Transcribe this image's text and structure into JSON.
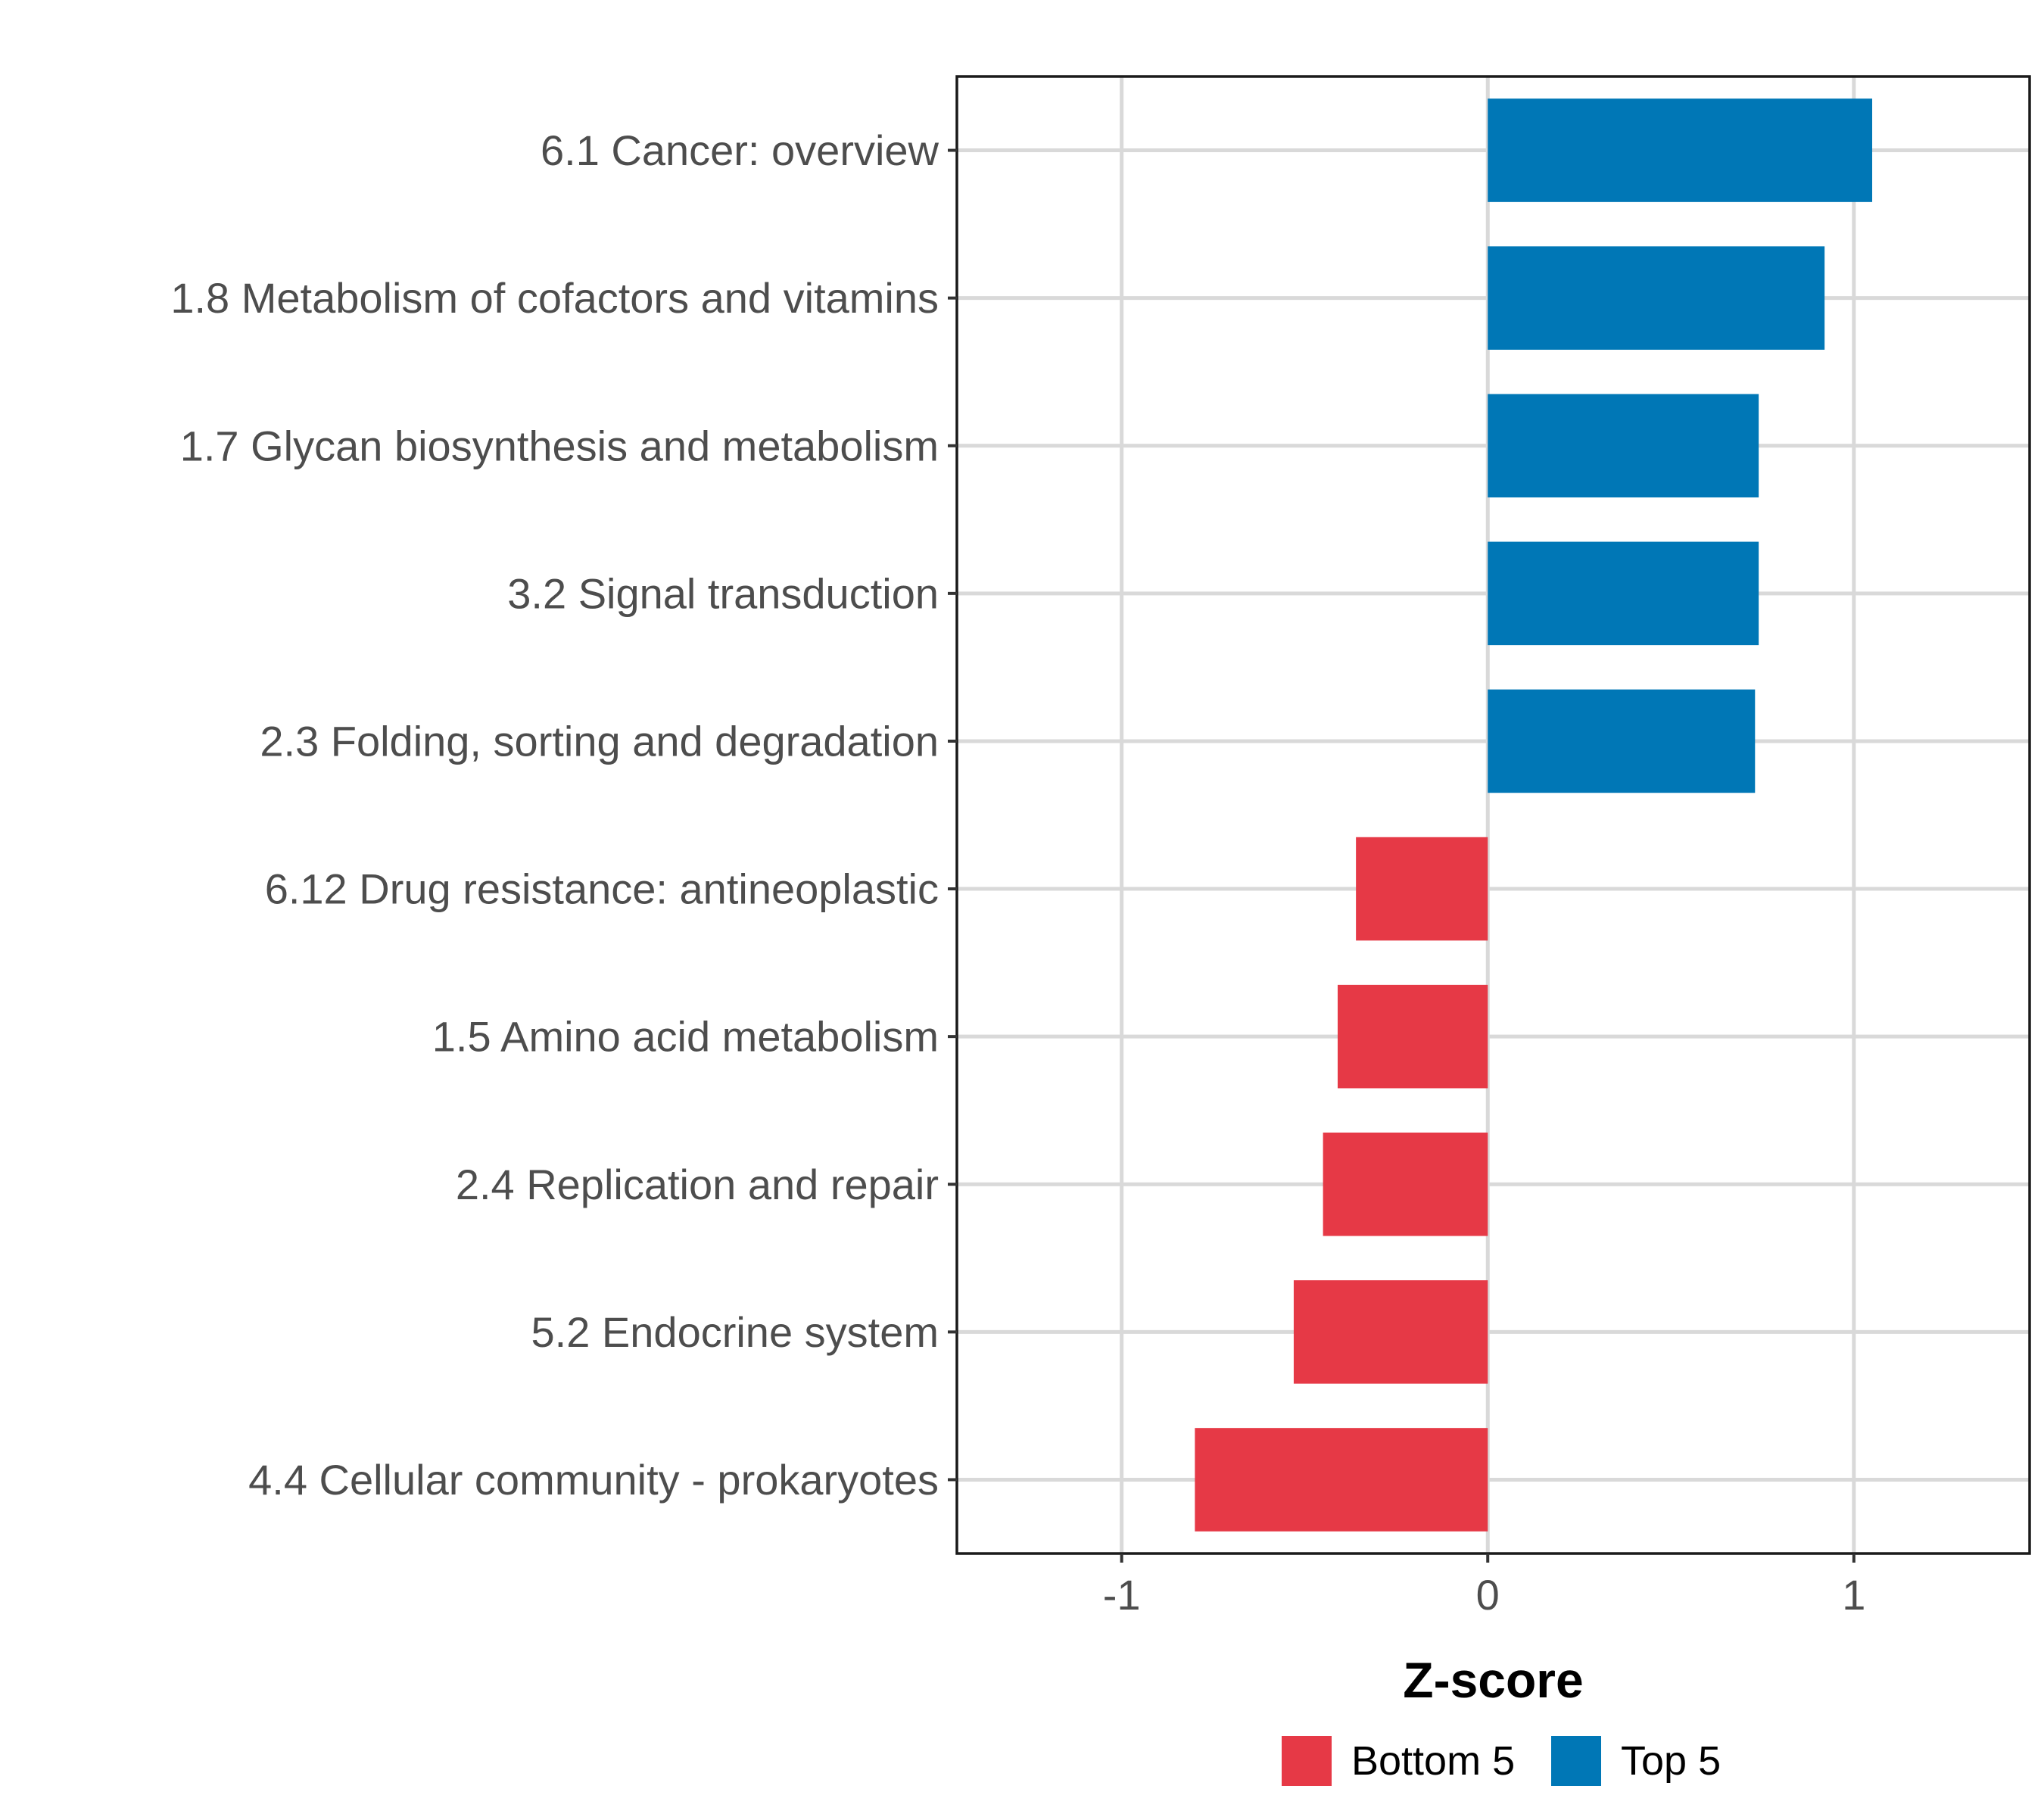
{
  "chart_data": {
    "type": "bar",
    "orientation": "horizontal",
    "title": "",
    "xlabel": "Z-score",
    "ylabel": "",
    "xlim": [
      -1.45,
      1.48
    ],
    "xticks": [
      -1,
      0,
      1
    ],
    "xtick_labels": [
      "-1",
      "0",
      "1"
    ],
    "grid": true,
    "legend_position": "bottom",
    "categories": [
      "6.1 Cancer: overview",
      "1.8 Metabolism of cofactors and vitamins",
      "1.7 Glycan biosynthesis and metabolism",
      "3.2 Signal transduction",
      "2.3 Folding, sorting and degradation",
      "6.12 Drug resistance: antineoplastic",
      "1.5 Amino acid metabolism",
      "2.4 Replication and repair",
      "5.2 Endocrine system",
      "4.4 Cellular community - prokaryotes"
    ],
    "values": [
      1.05,
      0.92,
      0.74,
      0.74,
      0.73,
      -0.36,
      -0.41,
      -0.45,
      -0.53,
      -0.8
    ],
    "groups": [
      "Top 5",
      "Top 5",
      "Top 5",
      "Top 5",
      "Top 5",
      "Bottom 5",
      "Bottom 5",
      "Bottom 5",
      "Bottom 5",
      "Bottom 5"
    ],
    "legend": [
      {
        "name": "Bottom 5",
        "color": "#e63946"
      },
      {
        "name": "Top 5",
        "color": "#0077b6"
      }
    ]
  }
}
